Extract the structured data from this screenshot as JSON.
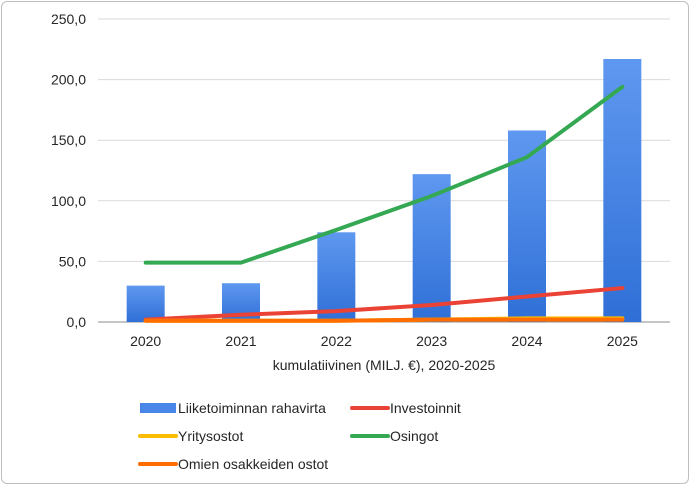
{
  "chart_data": {
    "type": "bar",
    "categories": [
      "2020",
      "2021",
      "2022",
      "2023",
      "2024",
      "2025"
    ],
    "xlabel": "kumulatiivinen (MILJ. €), 2020-2025",
    "ylabel": "",
    "ylim": [
      0,
      250
    ],
    "yticks": [
      "0,0",
      "50,0",
      "100,0",
      "150,0",
      "200,0",
      "250,0"
    ],
    "grid": true,
    "legend": "bottom",
    "series": [
      {
        "name": "Liiketoiminnan rahavirta",
        "kind": "bar",
        "color": "#4a86e8",
        "values": [
          30,
          32,
          74,
          122,
          158,
          217
        ]
      },
      {
        "name": "Investoinnit",
        "kind": "line",
        "color": "#ea4335",
        "values": [
          2,
          6,
          9,
          14,
          21,
          28
        ]
      },
      {
        "name": "Yritysostot",
        "kind": "line",
        "color": "#fbbc04",
        "values": [
          1,
          1,
          1,
          2,
          3,
          3
        ]
      },
      {
        "name": "Osingot",
        "kind": "line",
        "color": "#34a853",
        "values": [
          49,
          49,
          76,
          104,
          136,
          194
        ]
      },
      {
        "name": "Omien osakkeiden ostot",
        "kind": "line",
        "color": "#ff6d01",
        "values": [
          1,
          1,
          1,
          2,
          2,
          2
        ]
      }
    ]
  }
}
